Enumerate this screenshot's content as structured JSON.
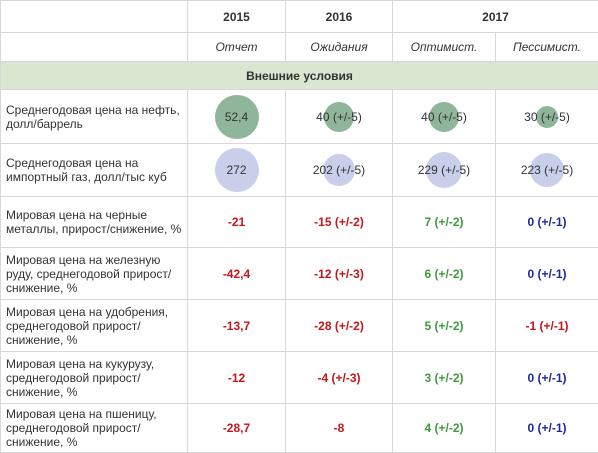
{
  "table": {
    "header": {
      "year_row": [
        "2015",
        "2016",
        "2017"
      ],
      "sub_row": [
        "Отчет",
        "Ожидания",
        "Оптимист.",
        "Пессимист."
      ]
    },
    "section": "Внешние условия",
    "rows": [
      {
        "label": "Среднегодовая цена на нефть, долл/баррель",
        "cells": [
          "52,4",
          "40 (+/-5)",
          "40 (+/-5)",
          "30 (+/-5)"
        ]
      },
      {
        "label": "Среднегодовая цена на импортный газ, долл/тыс куб",
        "cells": [
          "272",
          "202 (+/-5)",
          "229 (+/-5)",
          "223 (+/-5)"
        ]
      },
      {
        "label": "Мировая цена на черные металлы, прирост/снижение, %",
        "cells": [
          "-21",
          "-15 (+/-2)",
          "7 (+/-2)",
          "0 (+/-1)"
        ]
      },
      {
        "label": "Мировая цена на железную руду, среднегодовой прирост/снижение, %",
        "cells": [
          "-42,4",
          "-12 (+/-3)",
          "6 (+/-2)",
          "0 (+/-1)"
        ]
      },
      {
        "label": "Мировая цена на удобрения, среднегодовой прирост/снижение, %",
        "cells": [
          "-13,7",
          "-28 (+/-2)",
          "5 (+/-2)",
          "-1 (+/-1)"
        ]
      },
      {
        "label": "Мировая цена на кукурузу, среднегодовой прирост/снижение, %",
        "cells": [
          "-12",
          "-4 (+/-3)",
          "3 (+/-2)",
          "0 (+/-1)"
        ]
      },
      {
        "label": "Мировая цена на пшеницу, среднегодовой прирост/снижение, %",
        "cells": [
          "-28,7",
          "-8",
          "4 (+/-2)",
          "0 (+/-1)"
        ]
      }
    ]
  }
}
